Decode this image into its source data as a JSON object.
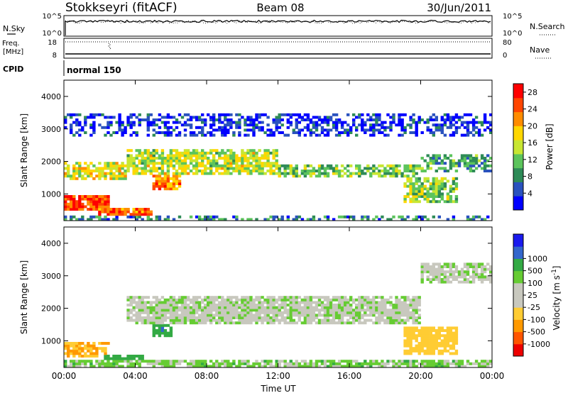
{
  "header": {
    "station": "Stokkseyri (fitACF)",
    "beam": "Beam 08",
    "date": "30/Jun/2011"
  },
  "noise_panel": {
    "left_label": "N.Sky",
    "right_label": "N.Search",
    "left_ticks": [
      "10^5",
      "10^0"
    ],
    "right_ticks": [
      "10^5",
      "10^0"
    ]
  },
  "freq_panel": {
    "left_label_1": "Freq.",
    "left_label_2": "[MHz]",
    "right_label": "Nave",
    "left_ticks": [
      "18",
      "8"
    ],
    "right_ticks": [
      "80",
      "0"
    ]
  },
  "cpid_panel": {
    "label": "CPID",
    "program": "normal 150"
  },
  "time_axis": {
    "label": "Time UT",
    "ticks": [
      "00:00",
      "04:00",
      "08:00",
      "12:00",
      "16:00",
      "20:00",
      "00:00"
    ]
  },
  "colors": {
    "power_scale": [
      "#0000ff",
      "#2a52be",
      "#2e8b57",
      "#5cc45c",
      "#c8e632",
      "#ffd700",
      "#ff8c00",
      "#ff4500",
      "#ff0000"
    ],
    "velocity_scale": [
      "#ee0000",
      "#ff5500",
      "#ff9900",
      "#ffcc33",
      "#c8c8be",
      "#c8c8be",
      "#66cc33",
      "#33aa44",
      "#3366cc",
      "#1a1aee"
    ]
  },
  "chart_data": [
    {
      "type": "heatmap",
      "panel": "power",
      "xlabel": "Time UT",
      "ylabel": "Slant Range [km]",
      "xlim": [
        0,
        24
      ],
      "ylim": [
        180,
        4500
      ],
      "yticks": [
        "1000",
        "2000",
        "3000",
        "4000"
      ],
      "colorbar_label": "Power [dB]",
      "colorbar_ticks": [
        "4",
        "8",
        "12",
        "16",
        "20",
        "24",
        "28"
      ],
      "colorbar_range": [
        0,
        30
      ],
      "features": [
        {
          "start_hr": 0.0,
          "end_hr": 2.5,
          "range_low_km": 500,
          "range_high_km": 1000,
          "level": 0.85
        },
        {
          "start_hr": 0.0,
          "end_hr": 3.5,
          "range_low_km": 1400,
          "range_high_km": 2000,
          "level": 0.55
        },
        {
          "start_hr": 2.0,
          "end_hr": 5.0,
          "range_low_km": 250,
          "range_high_km": 550,
          "level": 0.8
        },
        {
          "start_hr": 5.0,
          "end_hr": 6.5,
          "range_low_km": 1100,
          "range_high_km": 1600,
          "level": 0.75
        },
        {
          "start_hr": 3.5,
          "end_hr": 12.0,
          "range_low_km": 1600,
          "range_high_km": 2400,
          "level": 0.5
        },
        {
          "start_hr": 12.0,
          "end_hr": 20.0,
          "range_low_km": 1500,
          "range_high_km": 1900,
          "level": 0.4
        },
        {
          "start_hr": 20.0,
          "end_hr": 24.0,
          "range_low_km": 1700,
          "range_high_km": 2200,
          "level": 0.3
        },
        {
          "start_hr": 19.0,
          "end_hr": 22.0,
          "range_low_km": 700,
          "range_high_km": 1500,
          "level": 0.45
        },
        {
          "start_hr": 0.0,
          "end_hr": 24.0,
          "range_low_km": 180,
          "range_high_km": 350,
          "level": 0.25
        },
        {
          "start_hr": 0.0,
          "end_hr": 24.0,
          "range_low_km": 2800,
          "range_high_km": 3500,
          "level": 0.1
        }
      ]
    },
    {
      "type": "heatmap",
      "panel": "velocity",
      "xlabel": "Time UT",
      "ylabel": "Slant Range [km]",
      "xlim": [
        0,
        24
      ],
      "ylim": [
        180,
        4500
      ],
      "yticks": [
        "1000",
        "2000",
        "3000",
        "4000"
      ],
      "colorbar_label": "Velocity [m s^-1]",
      "colorbar_ticks": [
        "-1000",
        "-500",
        "-100",
        "-25",
        "25",
        "100",
        "500",
        "1000"
      ],
      "colorbar_range": [
        -1200,
        1200
      ],
      "features": [
        {
          "start_hr": 0.0,
          "end_hr": 2.5,
          "range_low_km": 500,
          "range_high_km": 1000,
          "velocity": -500
        },
        {
          "start_hr": 2.0,
          "end_hr": 4.5,
          "range_low_km": 250,
          "range_high_km": 550,
          "velocity": 400
        },
        {
          "start_hr": 5.0,
          "end_hr": 6.0,
          "range_low_km": 1100,
          "range_high_km": 1600,
          "velocity": 450
        },
        {
          "start_hr": 3.5,
          "end_hr": 20.0,
          "range_low_km": 1500,
          "range_high_km": 2400,
          "velocity": 0
        },
        {
          "start_hr": 19.0,
          "end_hr": 22.0,
          "range_low_km": 600,
          "range_high_km": 1400,
          "velocity": -400
        },
        {
          "start_hr": 20.0,
          "end_hr": 24.0,
          "range_low_km": 2800,
          "range_high_km": 3400,
          "velocity": 0
        },
        {
          "start_hr": 0.0,
          "end_hr": 24.0,
          "range_low_km": 180,
          "range_high_km": 400,
          "velocity": 50
        }
      ]
    }
  ]
}
